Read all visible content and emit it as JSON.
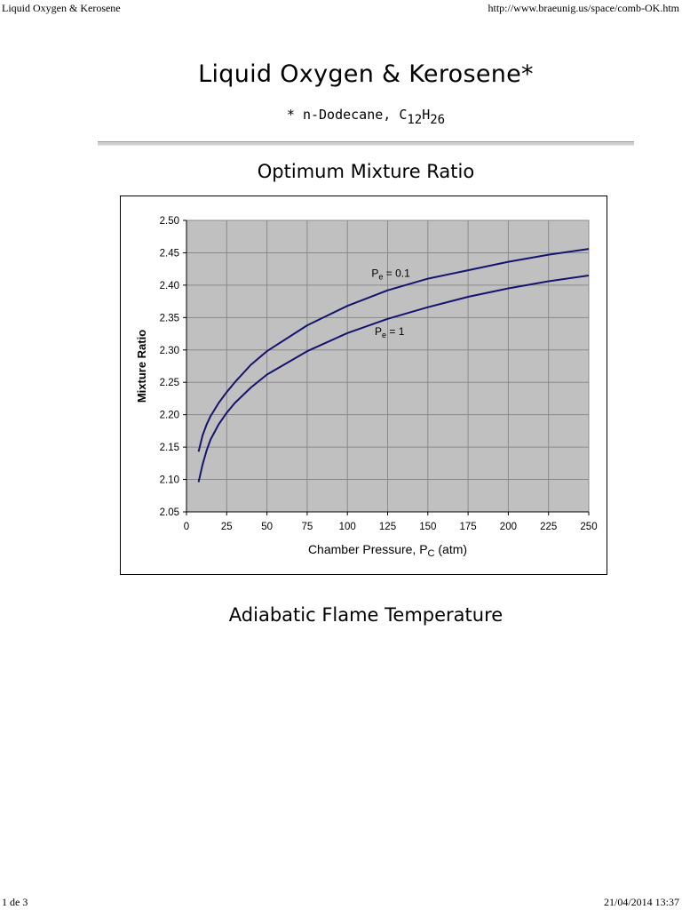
{
  "browser_header": {
    "page_title": "Liquid Oxygen & Kerosene",
    "url": "http://www.braeunig.us/space/comb-OK.htm"
  },
  "browser_footer": {
    "page_number": "1 de 3",
    "datetime": "21/04/2014 13:37"
  },
  "page": {
    "title": "Liquid Oxygen & Kerosene*",
    "subtitle_prefix": "*  n-Dodecane, C",
    "subtitle_sub1": "12",
    "subtitle_h": "H",
    "subtitle_sub2": "26",
    "section1_title": "Optimum Mixture Ratio",
    "section2_title": "Adiabatic Flame Temperature"
  },
  "colors": {
    "plot_background": "#c0c0c0",
    "gridline": "#8a8a8a",
    "series_line": "#14146e"
  },
  "chart_data": {
    "type": "line",
    "title": "",
    "xlabel_main": "Chamber Pressure, P",
    "xlabel_sub": "C",
    "xlabel_unit": " (atm)",
    "ylabel": "Mixture Ratio",
    "xlim": [
      0,
      250
    ],
    "ylim": [
      2.05,
      2.5
    ],
    "x_ticks": [
      "0",
      "25",
      "50",
      "75",
      "100",
      "125",
      "150",
      "175",
      "200",
      "225",
      "250"
    ],
    "y_ticks": [
      "2.05",
      "2.10",
      "2.15",
      "2.20",
      "2.25",
      "2.30",
      "2.35",
      "2.40",
      "2.45",
      "2.50"
    ],
    "grid": true,
    "legend": "none",
    "series": [
      {
        "label_main": "P",
        "label_sub": "e",
        "label_tail": " = 0.1",
        "x": [
          7.5,
          10,
          12.5,
          15,
          20,
          25,
          30,
          40,
          50,
          75,
          100,
          125,
          150,
          175,
          200,
          225,
          250
        ],
        "y": [
          2.143,
          2.168,
          2.185,
          2.198,
          2.218,
          2.235,
          2.25,
          2.277,
          2.298,
          2.338,
          2.368,
          2.392,
          2.41,
          2.423,
          2.436,
          2.447,
          2.456
        ]
      },
      {
        "label_main": "P",
        "label_sub": "e",
        "label_tail": " = 1",
        "x": [
          7.5,
          10,
          12.5,
          15,
          20,
          25,
          30,
          40,
          50,
          75,
          100,
          125,
          150,
          175,
          200,
          225,
          250
        ],
        "y": [
          2.096,
          2.123,
          2.145,
          2.162,
          2.185,
          2.203,
          2.218,
          2.242,
          2.262,
          2.298,
          2.326,
          2.348,
          2.366,
          2.382,
          2.395,
          2.406,
          2.415
        ]
      }
    ]
  }
}
